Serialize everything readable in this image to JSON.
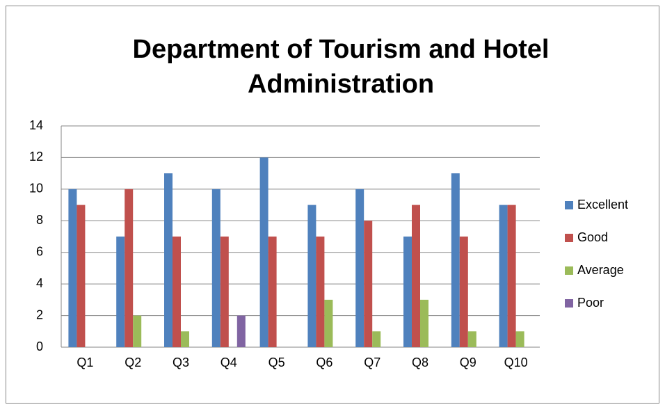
{
  "chart_data": {
    "type": "bar",
    "title": "Department of Tourism and Hotel Administration",
    "categories": [
      "Q1",
      "Q2",
      "Q3",
      "Q4",
      "Q5",
      "Q6",
      "Q7",
      "Q8",
      "Q9",
      "Q10"
    ],
    "series": [
      {
        "name": "Excellent",
        "color": "#4f81bd",
        "values": [
          10,
          7,
          11,
          10,
          12,
          9,
          10,
          7,
          11,
          9
        ]
      },
      {
        "name": "Good",
        "color": "#c0504d",
        "values": [
          9,
          10,
          7,
          7,
          7,
          7,
          8,
          9,
          7,
          9
        ]
      },
      {
        "name": "Average",
        "color": "#9bbb59",
        "values": [
          0,
          2,
          1,
          0,
          0,
          3,
          1,
          3,
          1,
          1
        ]
      },
      {
        "name": "Poor",
        "color": "#8064a2",
        "values": [
          0,
          0,
          0,
          2,
          0,
          0,
          0,
          0,
          0,
          0
        ]
      }
    ],
    "ylim": [
      0,
      14
    ],
    "yticks": [
      0,
      2,
      4,
      6,
      8,
      10,
      12,
      14
    ],
    "grid": true,
    "legend": "right"
  }
}
